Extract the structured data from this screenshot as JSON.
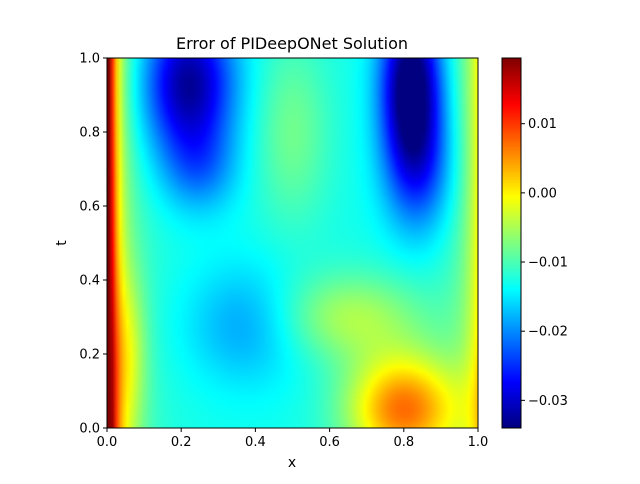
{
  "chart_data": {
    "type": "heatmap",
    "title": "Error of PIDeepONet Solution",
    "xlabel": "x",
    "ylabel": "t",
    "xlim": [
      0.0,
      1.0
    ],
    "ylim": [
      0.0,
      1.0
    ],
    "x_ticks": [
      "0.0",
      "0.2",
      "0.4",
      "0.6",
      "0.8",
      "1.0"
    ],
    "y_ticks": [
      "0.0",
      "0.2",
      "0.4",
      "0.6",
      "0.8",
      "1.0"
    ],
    "colormap": "jet",
    "colorbar": {
      "vmin": -0.034,
      "vmax": 0.0195,
      "tick_values": [
        0.01,
        0.0,
        -0.01,
        -0.02,
        -0.03
      ],
      "tick_labels": [
        "0.01",
        "0.00",
        "−0.01",
        "−0.02",
        "−0.03"
      ]
    },
    "grid_resolution": [
      100,
      100
    ],
    "field_features": [
      {
        "feature": "max error band",
        "x": 0.01,
        "t_range": [
          0.0,
          1.0
        ],
        "value": 0.019
      },
      {
        "feature": "min error (upper right)",
        "x": 0.82,
        "t": 0.92,
        "value": -0.034
      },
      {
        "feature": "min error (upper left)",
        "x": 0.22,
        "t": 0.92,
        "value": -0.031
      },
      {
        "feature": "positive lobe (lower right)",
        "x": 0.8,
        "t": 0.05,
        "value": 0.007
      },
      {
        "feature": "near-zero edge",
        "x": 0.97,
        "t_range": [
          0.0,
          1.0
        ],
        "value": 0.0
      }
    ]
  }
}
